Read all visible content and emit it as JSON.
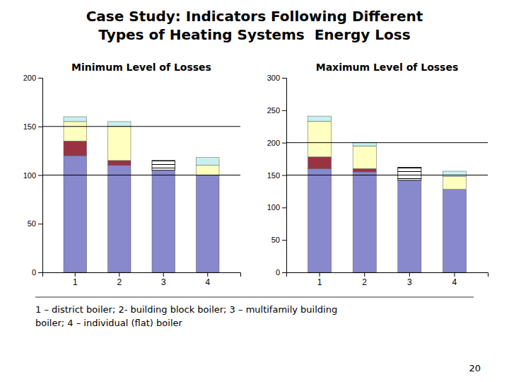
{
  "chart_data": [
    {
      "type": "bar",
      "stacked": true,
      "title": "Case Study: Indicators Following Different\nTypes of Heating Systems  Energy Loss",
      "subtitle": "Minimum Level of Losses",
      "annotations": [
        "1 – district boiler; 2- building block boiler; 3 – multifamily building\nboiler; 4 – individual (flat) boiler",
        "20"
      ],
      "categories": [
        "1",
        "2",
        "3",
        "4"
      ],
      "series": [
        {
          "color": "#8888cc",
          "values": [
            120,
            110,
            105,
            100
          ]
        },
        {
          "color": "#993344",
          "values": [
            15,
            5,
            0,
            0
          ]
        },
        {
          "color": "#ffffc0",
          "values": [
            20,
            35,
            0,
            10
          ]
        },
        {
          "color": "#c8f0ee",
          "values": [
            5,
            5,
            0,
            8
          ]
        },
        {
          "color": "#ffffff",
          "values": [
            0,
            0,
            10,
            0
          ]
        }
      ],
      "reference_lines": [
        100,
        150
      ],
      "ylim": [
        0,
        200
      ],
      "yticks": [
        0,
        50,
        100,
        150,
        200
      ]
    },
    {
      "type": "bar",
      "stacked": true,
      "subtitle": "Maximum Level of Losses",
      "categories": [
        "1",
        "2",
        "3",
        "4"
      ],
      "series": [
        {
          "color": "#8888cc",
          "values": [
            160,
            155,
            142,
            128
          ]
        },
        {
          "color": "#993344",
          "values": [
            18,
            5,
            0,
            0
          ]
        },
        {
          "color": "#ffffc0",
          "values": [
            55,
            35,
            0,
            20
          ]
        },
        {
          "color": "#c8f0ee",
          "values": [
            8,
            5,
            0,
            8
          ]
        },
        {
          "color": "#ffffff",
          "values": [
            0,
            0,
            20,
            0
          ]
        }
      ],
      "reference_lines": [
        150,
        200
      ],
      "ylim": [
        0,
        300
      ],
      "yticks": [
        0,
        50,
        100,
        150,
        200,
        250,
        300
      ]
    }
  ]
}
